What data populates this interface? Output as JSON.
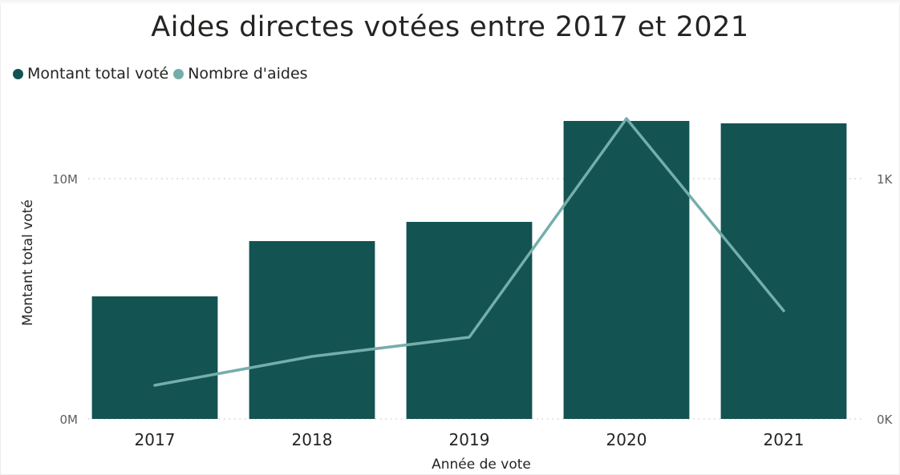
{
  "chart_data": {
    "type": "bar",
    "title": "Aides directes votées entre 2017 et 2021",
    "xlabel": "Année de vote",
    "ylabel": "Montant total voté",
    "categories": [
      "2017",
      "2018",
      "2019",
      "2020",
      "2021"
    ],
    "series": [
      {
        "name": "Montant total voté",
        "type": "bar",
        "axis": "left",
        "values": [
          5100000,
          7400000,
          8200000,
          12400000,
          12300000
        ],
        "color": "#135352"
      },
      {
        "name": "Nombre d'aides",
        "type": "line",
        "axis": "right",
        "values": [
          140,
          260,
          340,
          1250,
          450
        ],
        "color": "#74aeab"
      }
    ],
    "y_left": {
      "ylim": [
        0,
        13000000
      ],
      "ticks": [
        0,
        10000000
      ],
      "tick_labels": [
        "0M",
        "10M"
      ]
    },
    "y_right": {
      "ylim": [
        0,
        1300
      ],
      "ticks": [
        0,
        1000
      ],
      "tick_labels": [
        "0K",
        "1K"
      ]
    },
    "grid": true,
    "legend_position": "top-left"
  }
}
